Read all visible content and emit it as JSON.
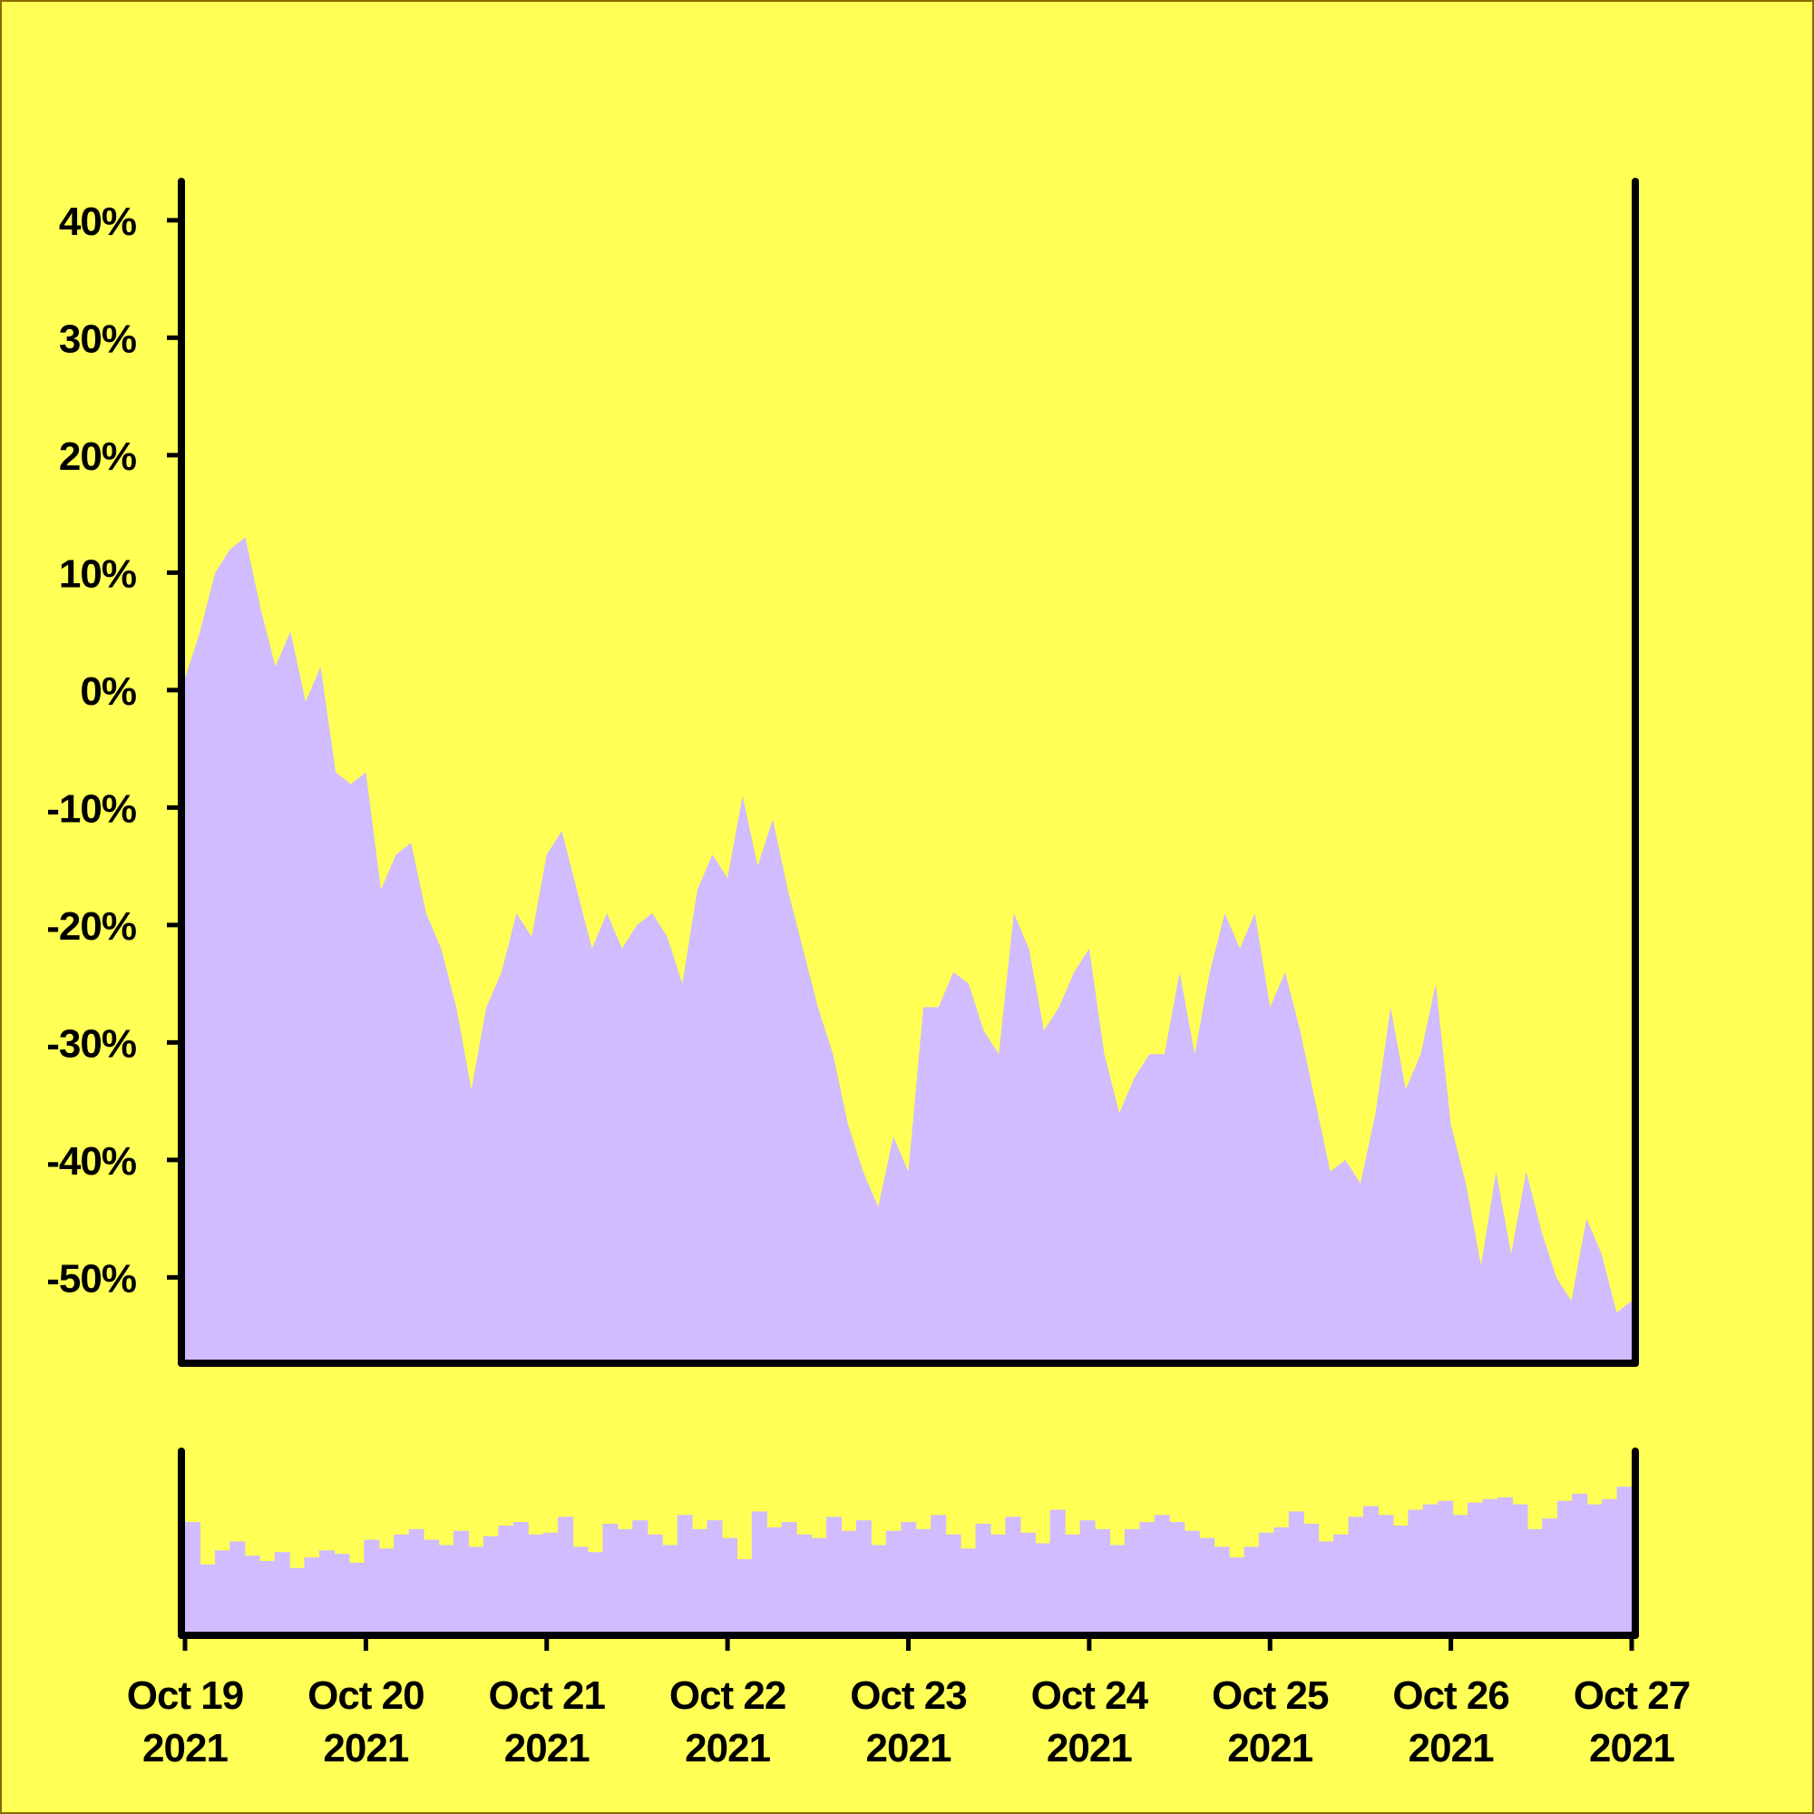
{
  "colors": {
    "background": "#ffff55",
    "fill": "#d0bcff",
    "axis": "#000000"
  },
  "chart_data": [
    {
      "type": "area",
      "title": "",
      "xlabel": "",
      "ylabel": "",
      "ylim": [
        -0.57,
        0.43
      ],
      "yticks": [
        {
          "value": 0.4,
          "label": "40%"
        },
        {
          "value": 0.3,
          "label": "30%"
        },
        {
          "value": 0.2,
          "label": "20%"
        },
        {
          "value": 0.1,
          "label": "10%"
        },
        {
          "value": 0.0,
          "label": "0%"
        },
        {
          "value": -0.1,
          "label": "-10%"
        },
        {
          "value": -0.2,
          "label": "-20%"
        },
        {
          "value": -0.3,
          "label": "-30%"
        },
        {
          "value": -0.4,
          "label": "-40%"
        },
        {
          "value": -0.5,
          "label": "-50%"
        }
      ],
      "xlim": [
        "2021-10-19",
        "2021-10-27"
      ],
      "xticks": [
        {
          "date": "2021-10-19",
          "line1": "Oct 19",
          "line2": "2021"
        },
        {
          "date": "2021-10-20",
          "line1": "Oct 20",
          "line2": "2021"
        },
        {
          "date": "2021-10-21",
          "line1": "Oct 21",
          "line2": "2021"
        },
        {
          "date": "2021-10-22",
          "line1": "Oct 22",
          "line2": "2021"
        },
        {
          "date": "2021-10-23",
          "line1": "Oct 23",
          "line2": "2021"
        },
        {
          "date": "2021-10-24",
          "line1": "Oct 24",
          "line2": "2021"
        },
        {
          "date": "2021-10-25",
          "line1": "Oct 25",
          "line2": "2021"
        },
        {
          "date": "2021-10-26",
          "line1": "Oct 26",
          "line2": "2021"
        },
        {
          "date": "2021-10-27",
          "line1": "Oct 27",
          "line2": "2021"
        }
      ],
      "grid": false,
      "x": [
        "2021-10-19 00:00",
        "2021-10-19 02:00",
        "2021-10-19 04:00",
        "2021-10-19 06:00",
        "2021-10-19 08:00",
        "2021-10-19 10:00",
        "2021-10-19 12:00",
        "2021-10-19 14:00",
        "2021-10-19 16:00",
        "2021-10-19 18:00",
        "2021-10-19 20:00",
        "2021-10-19 22:00",
        "2021-10-20 00:00",
        "2021-10-20 02:00",
        "2021-10-20 04:00",
        "2021-10-20 06:00",
        "2021-10-20 08:00",
        "2021-10-20 10:00",
        "2021-10-20 12:00",
        "2021-10-20 14:00",
        "2021-10-20 16:00",
        "2021-10-20 18:00",
        "2021-10-20 20:00",
        "2021-10-20 22:00",
        "2021-10-21 00:00",
        "2021-10-21 02:00",
        "2021-10-21 04:00",
        "2021-10-21 06:00",
        "2021-10-21 08:00",
        "2021-10-21 10:00",
        "2021-10-21 12:00",
        "2021-10-21 14:00",
        "2021-10-21 16:00",
        "2021-10-21 18:00",
        "2021-10-21 20:00",
        "2021-10-21 22:00",
        "2021-10-22 00:00",
        "2021-10-22 02:00",
        "2021-10-22 04:00",
        "2021-10-22 06:00",
        "2021-10-22 08:00",
        "2021-10-22 10:00",
        "2021-10-22 12:00",
        "2021-10-22 14:00",
        "2021-10-22 16:00",
        "2021-10-22 18:00",
        "2021-10-22 20:00",
        "2021-10-22 22:00",
        "2021-10-23 00:00",
        "2021-10-23 02:00",
        "2021-10-23 04:00",
        "2021-10-23 06:00",
        "2021-10-23 08:00",
        "2021-10-23 10:00",
        "2021-10-23 12:00",
        "2021-10-23 14:00",
        "2021-10-23 16:00",
        "2021-10-23 18:00",
        "2021-10-23 20:00",
        "2021-10-23 22:00",
        "2021-10-24 00:00",
        "2021-10-24 02:00",
        "2021-10-24 04:00",
        "2021-10-24 06:00",
        "2021-10-24 08:00",
        "2021-10-24 10:00",
        "2021-10-24 12:00",
        "2021-10-24 14:00",
        "2021-10-24 16:00",
        "2021-10-24 18:00",
        "2021-10-24 20:00",
        "2021-10-24 22:00",
        "2021-10-25 00:00",
        "2021-10-25 02:00",
        "2021-10-25 04:00",
        "2021-10-25 06:00",
        "2021-10-25 08:00",
        "2021-10-25 10:00",
        "2021-10-25 12:00",
        "2021-10-25 14:00",
        "2021-10-25 16:00",
        "2021-10-25 18:00",
        "2021-10-25 20:00",
        "2021-10-25 22:00",
        "2021-10-26 00:00",
        "2021-10-26 02:00",
        "2021-10-26 04:00",
        "2021-10-26 06:00",
        "2021-10-26 08:00",
        "2021-10-26 10:00",
        "2021-10-26 12:00",
        "2021-10-26 14:00",
        "2021-10-26 16:00",
        "2021-10-26 18:00",
        "2021-10-26 20:00",
        "2021-10-26 22:00",
        "2021-10-27 00:00"
      ],
      "values": [
        0.01,
        0.05,
        0.1,
        0.12,
        0.13,
        0.07,
        0.02,
        0.05,
        -0.01,
        0.02,
        -0.07,
        -0.08,
        -0.07,
        -0.17,
        -0.14,
        -0.13,
        -0.19,
        -0.22,
        -0.27,
        -0.34,
        -0.27,
        -0.24,
        -0.19,
        -0.21,
        -0.14,
        -0.12,
        -0.17,
        -0.22,
        -0.19,
        -0.22,
        -0.2,
        -0.19,
        -0.21,
        -0.25,
        -0.17,
        -0.14,
        -0.16,
        -0.09,
        -0.15,
        -0.11,
        -0.17,
        -0.22,
        -0.27,
        -0.31,
        -0.37,
        -0.41,
        -0.44,
        -0.38,
        -0.41,
        -0.27,
        -0.27,
        -0.24,
        -0.25,
        -0.29,
        -0.31,
        -0.19,
        -0.22,
        -0.29,
        -0.27,
        -0.24,
        -0.22,
        -0.31,
        -0.36,
        -0.33,
        -0.31,
        -0.31,
        -0.24,
        -0.31,
        -0.24,
        -0.19,
        -0.22,
        -0.19,
        -0.27,
        -0.24,
        -0.29,
        -0.35,
        -0.41,
        -0.4,
        -0.42,
        -0.36,
        -0.27,
        -0.34,
        -0.31,
        -0.25,
        -0.37,
        -0.42,
        -0.49,
        -0.41,
        -0.48,
        -0.41,
        -0.46,
        -0.5,
        -0.52,
        -0.45,
        -0.48,
        -0.53,
        -0.52
      ]
    },
    {
      "type": "bar",
      "title": "",
      "xlabel": "",
      "ylabel": "",
      "ylim": [
        0,
        1
      ],
      "x_from": "2021-10-19",
      "x_to": "2021-10-27",
      "values": [
        0.62,
        0.38,
        0.46,
        0.51,
        0.43,
        0.4,
        0.45,
        0.36,
        0.42,
        0.46,
        0.44,
        0.39,
        0.52,
        0.47,
        0.55,
        0.58,
        0.52,
        0.49,
        0.57,
        0.48,
        0.54,
        0.6,
        0.62,
        0.55,
        0.56,
        0.65,
        0.48,
        0.45,
        0.61,
        0.58,
        0.63,
        0.55,
        0.49,
        0.66,
        0.58,
        0.63,
        0.53,
        0.41,
        0.68,
        0.59,
        0.62,
        0.55,
        0.53,
        0.65,
        0.57,
        0.63,
        0.49,
        0.57,
        0.62,
        0.58,
        0.66,
        0.55,
        0.47,
        0.61,
        0.55,
        0.65,
        0.56,
        0.5,
        0.69,
        0.55,
        0.63,
        0.58,
        0.49,
        0.58,
        0.62,
        0.66,
        0.62,
        0.57,
        0.53,
        0.48,
        0.42,
        0.48,
        0.56,
        0.59,
        0.68,
        0.61,
        0.51,
        0.55,
        0.65,
        0.71,
        0.66,
        0.6,
        0.69,
        0.72,
        0.74,
        0.66,
        0.73,
        0.75,
        0.76,
        0.72,
        0.58,
        0.64,
        0.74,
        0.78,
        0.72,
        0.75,
        0.82
      ]
    }
  ]
}
